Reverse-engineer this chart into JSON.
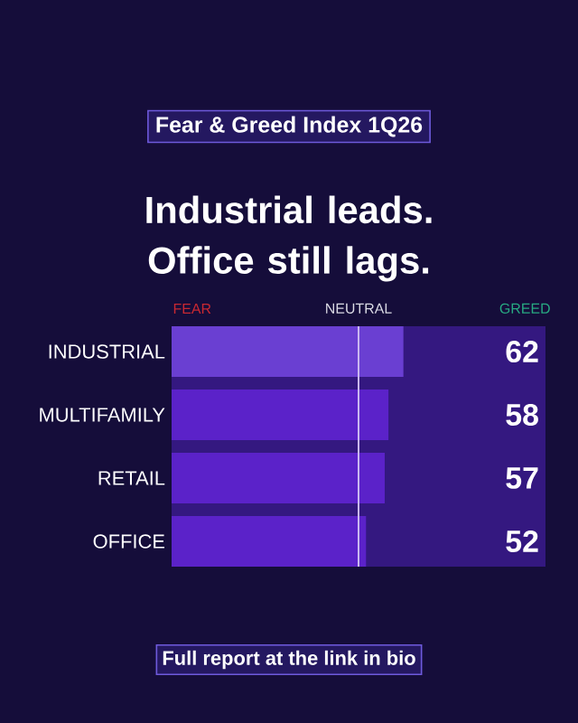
{
  "chart_data": {
    "type": "bar",
    "orientation": "horizontal",
    "title": "Fear & Greed Index 1Q26",
    "subtitle": "Industrial leads. Office still lags.",
    "categories": [
      "INDUSTRIAL",
      "MULTIFAMILY",
      "RETAIL",
      "OFFICE"
    ],
    "values": [
      62,
      58,
      57,
      52
    ],
    "colors": [
      "#6a3fd2",
      "#5b22c9",
      "#5b22c9",
      "#5b22c9"
    ],
    "xlim": [
      0,
      100
    ],
    "tick_labels": "y",
    "data_labels": true,
    "bands": [
      {
        "axis": "x",
        "from": 0,
        "to": 100,
        "color": "#341880"
      }
    ],
    "ref_lines": [
      {
        "axis": "x",
        "value": 50,
        "label": "NEUTRAL",
        "color": "#c9b8f0"
      }
    ],
    "annotations": [
      "FEAR",
      "GREED",
      "Full report at the link in bio"
    ]
  }
}
